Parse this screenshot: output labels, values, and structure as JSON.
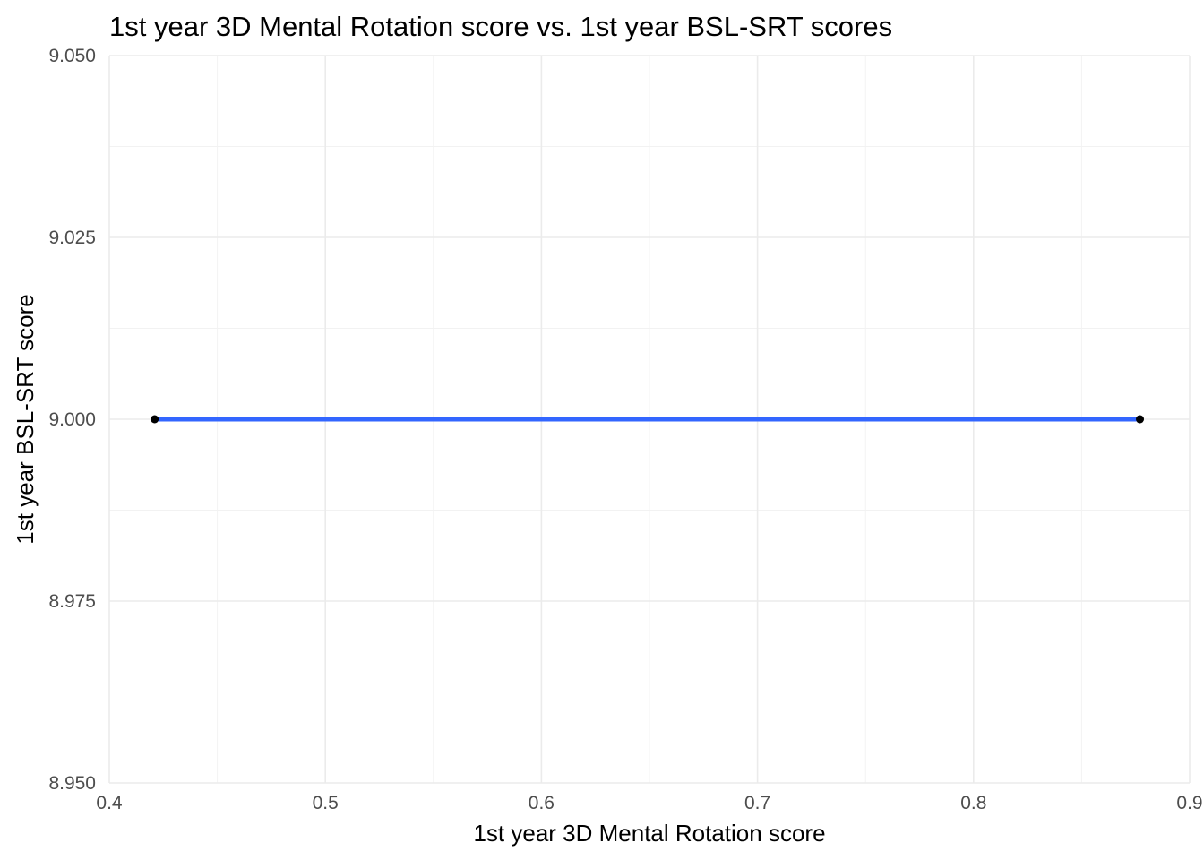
{
  "chart_data": {
    "type": "line",
    "title": "1st year 3D Mental Rotation score vs. 1st year BSL-SRT scores",
    "xlabel": "1st year 3D Mental Rotation score",
    "ylabel": "1st year BSL-SRT score",
    "xlim": [
      0.4,
      0.9
    ],
    "ylim": [
      8.95,
      9.05
    ],
    "x_ticks": [
      0.4,
      0.5,
      0.6,
      0.7,
      0.8,
      0.9
    ],
    "x_tick_labels": [
      "0.4",
      "0.5",
      "0.6",
      "0.7",
      "0.8",
      "0.9"
    ],
    "y_ticks": [
      8.95,
      8.975,
      9.0,
      9.025,
      9.05
    ],
    "y_tick_labels": [
      "8.950",
      "8.975",
      "9.000",
      "9.025",
      "9.050"
    ],
    "grid": true,
    "legend": "none",
    "points": {
      "x": [
        0.421,
        0.877
      ],
      "y": [
        9.0,
        9.0
      ],
      "color": "#000000"
    },
    "fit_line": {
      "x": [
        0.421,
        0.877
      ],
      "y": [
        9.0,
        9.0
      ],
      "color": "#3366ff"
    }
  }
}
